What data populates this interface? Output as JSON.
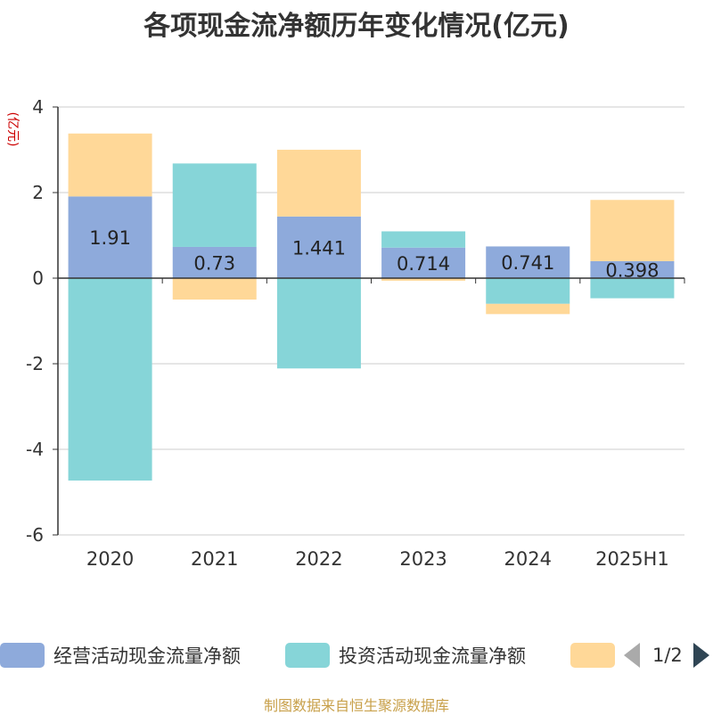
{
  "title": "各项现金流净额历年变化情况(亿元)",
  "source_note": "制图数据来自恒生聚源数据库",
  "legend_pager": {
    "page": "1/2"
  },
  "chart_data": {
    "type": "bar",
    "stacked": true,
    "ylabel": "(亿元)",
    "ylim": [
      -6,
      4
    ],
    "yticks": [
      4,
      2,
      0,
      -2,
      -4,
      -6
    ],
    "grid": true,
    "legend_position": "bottom",
    "categories": [
      "2020",
      "2021",
      "2022",
      "2023",
      "2024",
      "2025H1"
    ],
    "series": [
      {
        "name": "经营活动现金流量净额",
        "color": "#8eaadb",
        "values": [
          1.91,
          0.73,
          1.441,
          0.714,
          0.741,
          0.398
        ],
        "labels": [
          "1.91",
          "0.73",
          "1.441",
          "0.714",
          "0.741",
          "0.398"
        ]
      },
      {
        "name": "投资活动现金流量净额",
        "color": "#86d5d8",
        "values": [
          -4.73,
          1.95,
          -2.11,
          0.38,
          -0.6,
          -0.47
        ]
      },
      {
        "name": "",
        "color": "#ffd898",
        "values": [
          1.47,
          -0.5,
          1.56,
          -0.06,
          -0.24,
          1.43
        ]
      }
    ]
  }
}
